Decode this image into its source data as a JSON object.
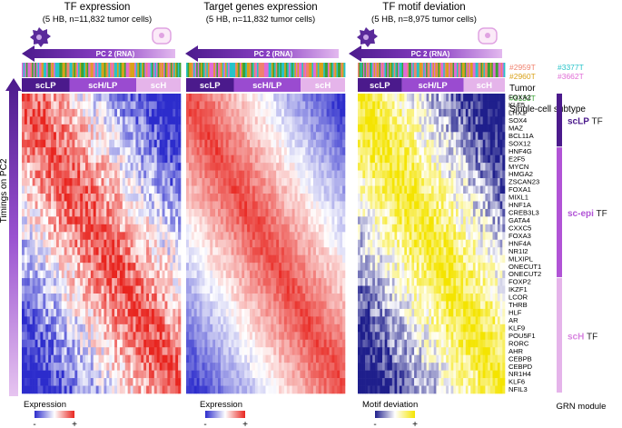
{
  "colors": {
    "brand_dark": "#4b1a8c",
    "brand_mid": "#8a3fc4",
    "brand_light": "#dca8e8",
    "lp": "#4b1a8c",
    "hlp": "#9a4bd0",
    "h": "#e5b4ea",
    "heat_low": "#2c2ccc",
    "heat_mid": "#ffffff",
    "heat_high": "#e8251f",
    "motif_low": "#1f1f8c",
    "motif_high": "#f4e400"
  },
  "chart_data": [
    {
      "type": "heatmap",
      "title": "TF expression",
      "subtitle": "(5 HB, n=11,832 tumor cells)",
      "xlabel": "PC 2 (RNA)",
      "ylabel": "Timings on PC2",
      "legend_title": "Expression",
      "legend_ticks": [
        "-",
        "+"
      ],
      "range": [
        -1,
        1
      ]
    },
    {
      "type": "heatmap",
      "title": "Target genes expression",
      "subtitle": "(5 HB, n=11,832 tumor cells)",
      "xlabel": "PC 2 (RNA)",
      "legend_title": "Expression",
      "legend_ticks": [
        "-",
        "+"
      ],
      "range": [
        -1,
        1
      ]
    },
    {
      "type": "heatmap",
      "title": "TF motif deviation",
      "subtitle": "(5 HB, n=8,975 tumor cells)",
      "xlabel": "PC 2 (RNA)",
      "legend_title": "Motif deviation",
      "legend_ticks": [
        "-",
        "+"
      ],
      "range": [
        -1,
        1
      ]
    }
  ],
  "subtypes": [
    "scLP",
    "scH/LP",
    "scH"
  ],
  "track_labels": {
    "tumor": "Tumor",
    "subtype": "Single-cell subtype"
  },
  "tumors": [
    {
      "id": "#2959T",
      "color": "#f0826e"
    },
    {
      "id": "#3377T",
      "color": "#27c3c9"
    },
    {
      "id": "#2960T",
      "color": "#d9a21a"
    },
    {
      "id": "#3662T",
      "color": "#e06bd6"
    },
    {
      "id": "#3133T",
      "color": "#3aa335"
    }
  ],
  "genes": [
    "FOXA2",
    "KLF5",
    "LHX1",
    "SOX4",
    "MAZ",
    "BCL11A",
    "SOX12",
    "HNF4G",
    "E2F5",
    "MYCN",
    "HMGA2",
    "ZSCAN23",
    "FOXA1",
    "MIXL1",
    "HNF1A",
    "CREB3L3",
    "GATA4",
    "CXXC5",
    "FOXA3",
    "HNF4A",
    "NR1I2",
    "MLXIPL",
    "ONECUT1",
    "ONECUT2",
    "FOXP2",
    "IKZF1",
    "LCOR",
    "THRB",
    "HLF",
    "AR",
    "KLF9",
    "POU5F1",
    "RORC",
    "AHR",
    "CEBPB",
    "CEBPD",
    "NR1H4",
    "KLF6",
    "NFIL3"
  ],
  "modules": [
    {
      "label_a": "scLP",
      "label_b": " TF",
      "color": "#4b1a8c",
      "text_color": "#4b1a8c"
    },
    {
      "label_a": "sc-epi",
      "label_b": " TF",
      "color": "#b154d6",
      "text_color": "#b154d6"
    },
    {
      "label_a": "scH",
      "label_b": " TF",
      "color": "#e5b4ea",
      "text_color": "#d884e0"
    }
  ],
  "module_title": "GRN module"
}
